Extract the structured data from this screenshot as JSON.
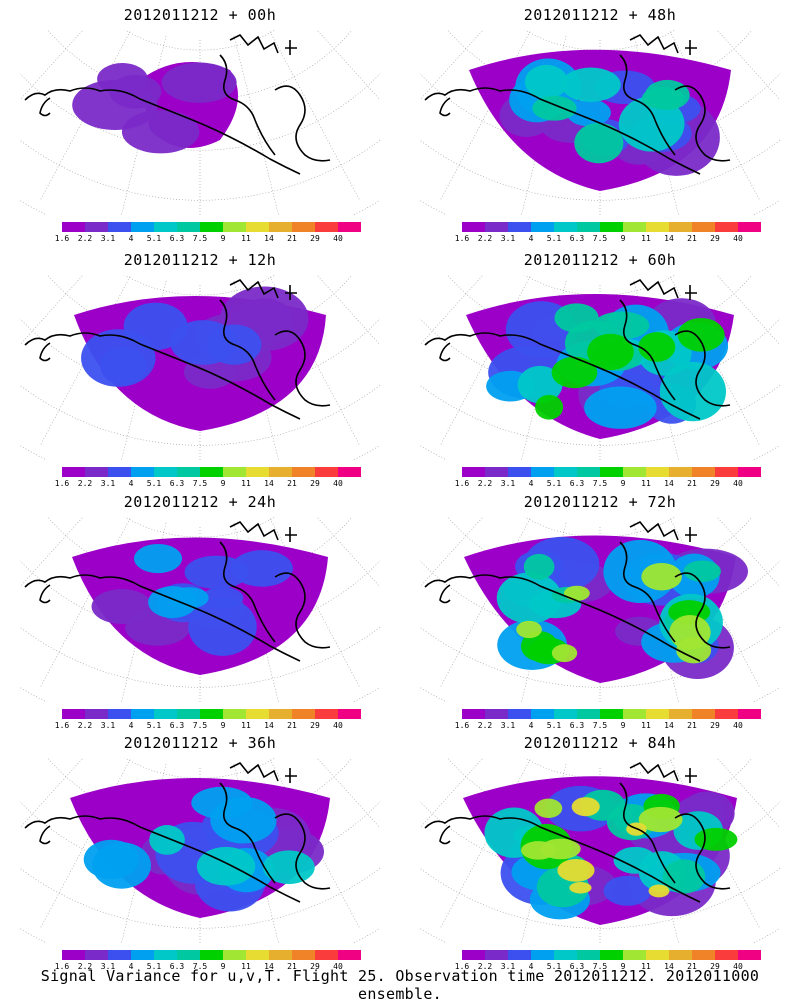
{
  "panels": [
    {
      "title": "2012011212 + 00h",
      "intensity": 0.15
    },
    {
      "title": "2012011212 + 48h",
      "intensity": 0.55
    },
    {
      "title": "2012011212 + 12h",
      "intensity": 0.3
    },
    {
      "title": "2012011212 + 60h",
      "intensity": 0.7
    },
    {
      "title": "2012011212 + 24h",
      "intensity": 0.4
    },
    {
      "title": "2012011212 + 72h",
      "intensity": 0.8
    },
    {
      "title": "2012011212 + 36h",
      "intensity": 0.5
    },
    {
      "title": "2012011212 + 84h",
      "intensity": 0.85
    }
  ],
  "colorbar": {
    "labels": [
      "1.6",
      "2.2",
      "3.1",
      "4",
      "5.1",
      "6.3",
      "7.5",
      "9",
      "11",
      "14",
      "21",
      "29",
      "40"
    ],
    "colors": [
      "#9c00c8",
      "#7a2ac8",
      "#3c50ef",
      "#00a0f0",
      "#00c8c8",
      "#00c8a0",
      "#00d000",
      "#a0e632",
      "#e6dc32",
      "#e6af2d",
      "#f08228",
      "#fa3c3c",
      "#f00082"
    ]
  },
  "caption": "Signal Variance for u,v,T. Flight 25. Observation time 2012011212. 2012011000 ensemble."
}
